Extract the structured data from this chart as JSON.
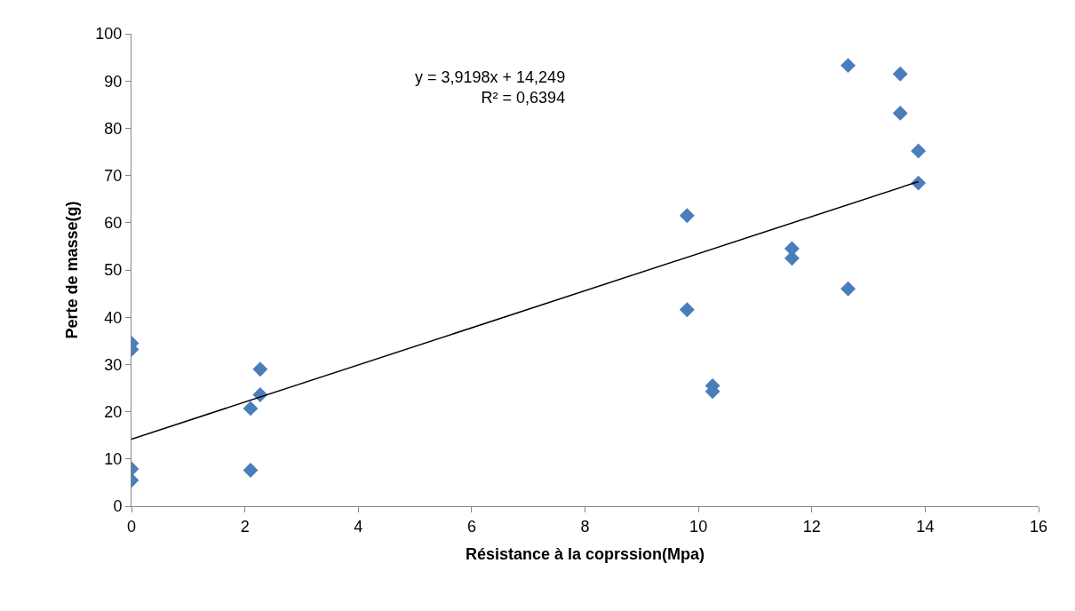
{
  "chart_data": {
    "type": "scatter",
    "xlabel": "Résistance à la coprssion(Mpa)",
    "ylabel": "Perte de masse(g)",
    "xlim": [
      0,
      16
    ],
    "xticks": [
      0,
      2,
      4,
      6,
      8,
      10,
      12,
      14,
      16
    ],
    "ylim": [
      0,
      100
    ],
    "yticks": [
      0,
      10,
      20,
      30,
      40,
      50,
      60,
      70,
      80,
      90,
      100
    ],
    "annotations": [
      "y = 3,9198x + 14,249\nR² = 0,6394"
    ],
    "series": [
      {
        "marker": "diamond",
        "color": "#4a7ebb",
        "x": [
          0,
          0,
          0,
          0,
          2.1,
          2.1,
          2.27,
          2.27,
          9.8,
          9.8,
          10.25,
          10.25,
          11.65,
          11.65,
          12.64,
          12.64,
          13.56,
          13.56,
          13.88,
          13.88
        ],
        "values": [
          34.5,
          33.2,
          7.9,
          5.5,
          20.7,
          7.6,
          29.0,
          23.6,
          61.5,
          41.6,
          25.5,
          24.3,
          54.5,
          52.5,
          93.3,
          46.0,
          91.5,
          83.2,
          75.2,
          68.4
        ]
      },
      {
        "type": "line",
        "marker": "none",
        "color": "#000000",
        "x": [
          0,
          13.88
        ],
        "values": [
          14.2,
          68.7
        ]
      }
    ]
  }
}
